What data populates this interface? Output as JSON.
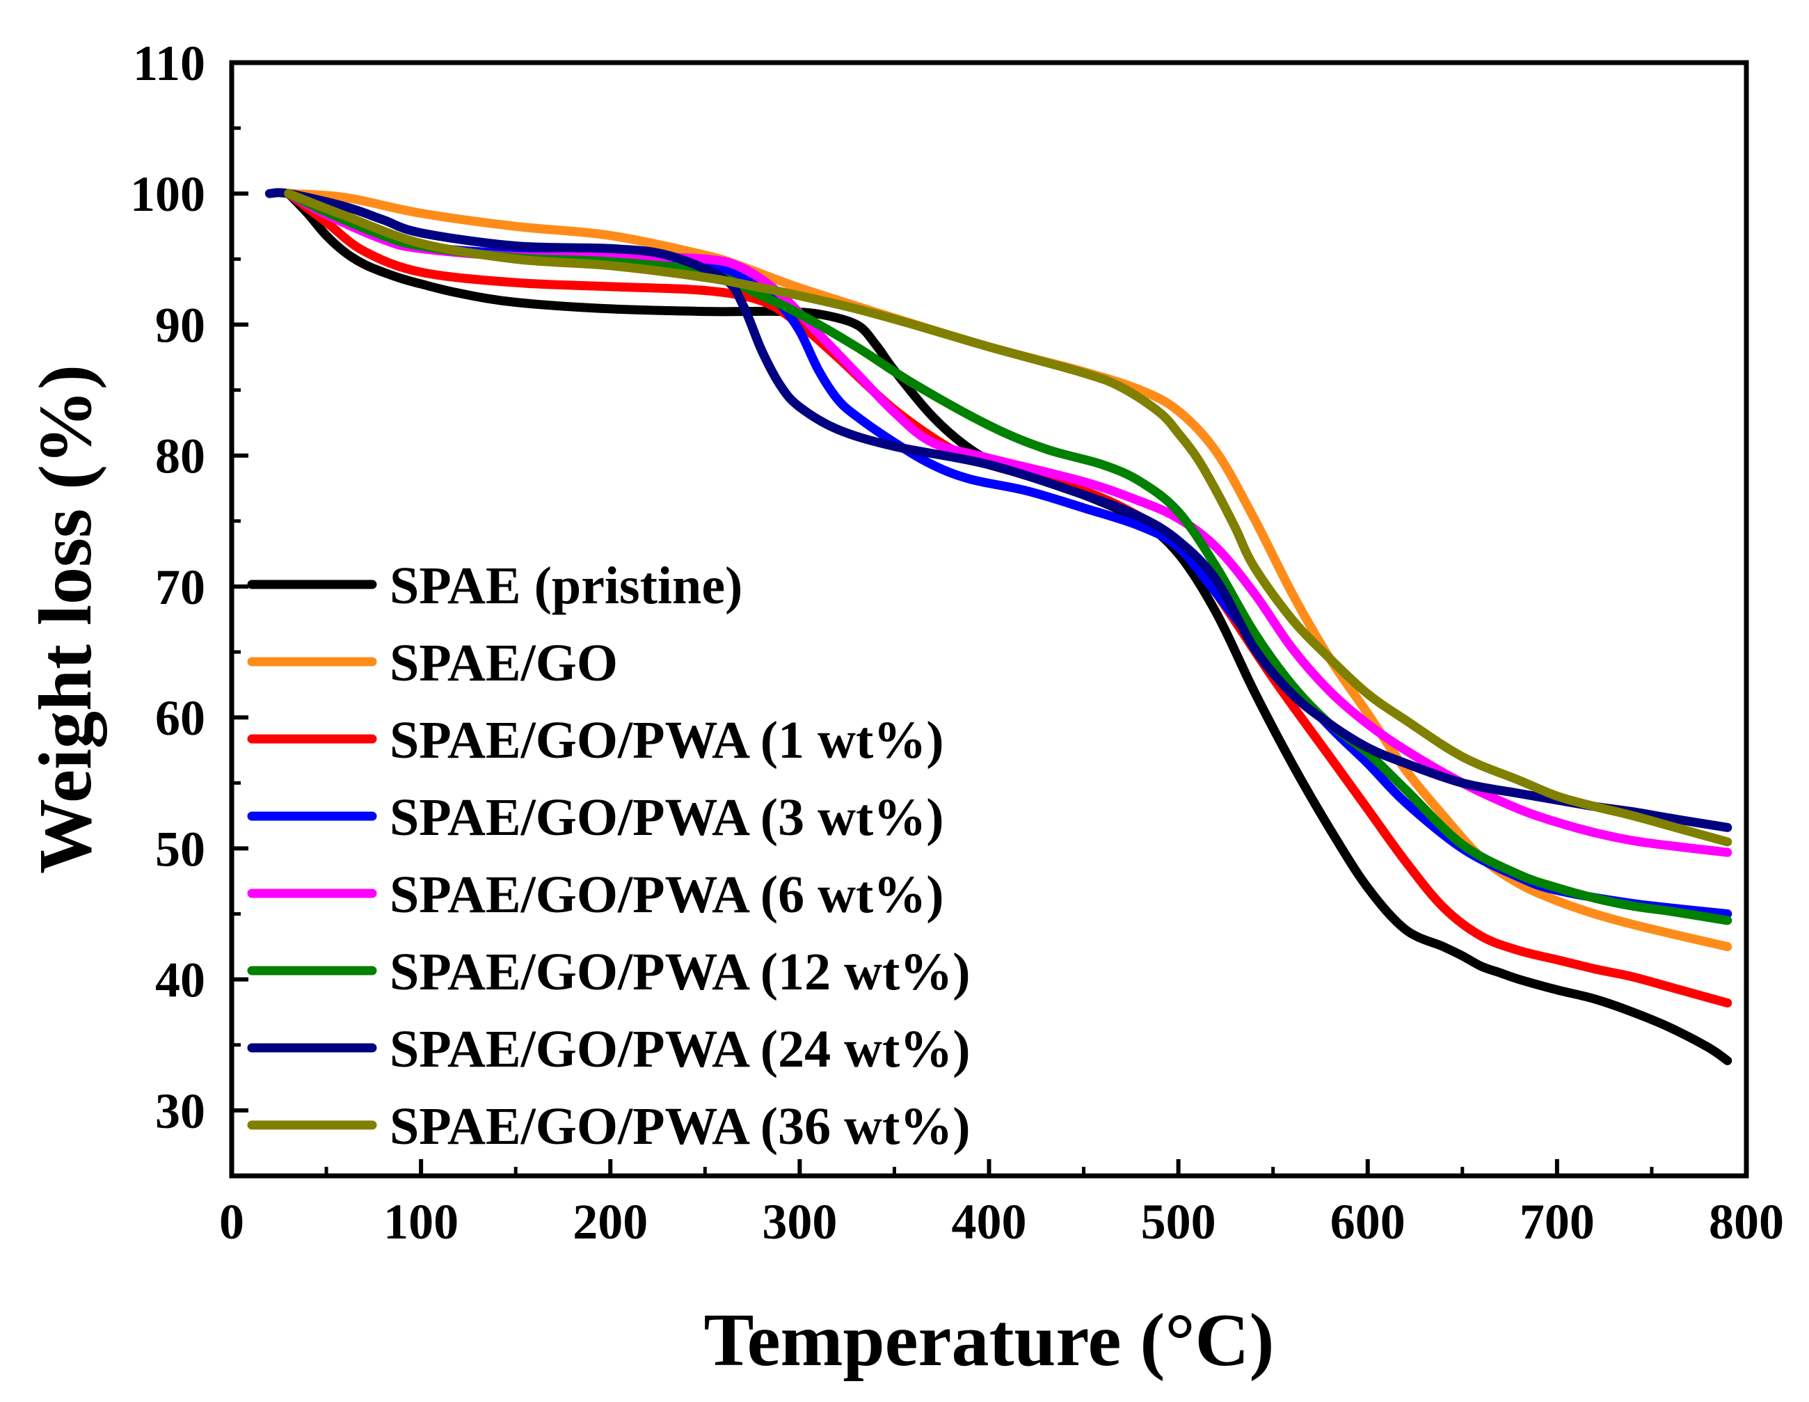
{
  "chart_data": {
    "type": "line",
    "title": "",
    "xlabel": "Temperature (°C)",
    "ylabel": "Weight loss (%)",
    "xlim": [
      0,
      800
    ],
    "ylim": [
      25,
      110
    ],
    "xticks": [
      0,
      100,
      200,
      300,
      400,
      500,
      600,
      700,
      800
    ],
    "yticks": [
      30,
      40,
      50,
      60,
      70,
      80,
      90,
      100,
      110
    ],
    "grid": false,
    "legend_position": "lower-left",
    "series": [
      {
        "name": "SPAE (pristine)",
        "color": "#000000",
        "x": [
          30,
          40,
          50,
          60,
          70,
          80,
          90,
          100,
          120,
          150,
          200,
          250,
          270,
          290,
          310,
          330,
          340,
          350,
          370,
          390,
          410,
          450,
          480,
          500,
          520,
          540,
          560,
          580,
          600,
          620,
          640,
          650,
          660,
          670,
          680,
          700,
          720,
          740,
          760,
          780,
          790
        ],
        "y": [
          100,
          98.5,
          96.8,
          95.5,
          94.6,
          94,
          93.5,
          93.1,
          92.4,
          91.7,
          91.2,
          91,
          91,
          91,
          90.8,
          90,
          88.5,
          86.5,
          83,
          80.5,
          79,
          77,
          75,
          72.5,
          68,
          62,
          56.5,
          51.5,
          47,
          43.8,
          42.5,
          41.8,
          41,
          40.5,
          40,
          39.2,
          38.5,
          37.5,
          36.3,
          34.8,
          33.8
        ]
      },
      {
        "name": "SPAE/GO",
        "color": "#ff8c1a",
        "x": [
          30,
          60,
          100,
          150,
          200,
          250,
          270,
          300,
          350,
          400,
          450,
          480,
          500,
          520,
          540,
          560,
          580,
          600,
          620,
          640,
          660,
          680,
          700,
          720,
          740,
          760,
          790
        ],
        "y": [
          100,
          99.7,
          98.5,
          97.5,
          96.8,
          95.3,
          94.4,
          92.8,
          90.5,
          88.3,
          86.4,
          85,
          83.4,
          80.3,
          75.2,
          69.5,
          64.5,
          60.3,
          56,
          52.5,
          49.3,
          47.3,
          46,
          45,
          44.2,
          43.5,
          42.5
        ]
      },
      {
        "name": "SPAE/GO/PWA (1 wt%)",
        "color": "#ff0000",
        "x": [
          30,
          50,
          70,
          100,
          150,
          200,
          250,
          280,
          300,
          320,
          350,
          380,
          400,
          450,
          480,
          500,
          520,
          550,
          580,
          600,
          620,
          640,
          660,
          680,
          700,
          720,
          740,
          760,
          790
        ],
        "y": [
          100,
          97.8,
          95.6,
          94,
          93.2,
          92.9,
          92.6,
          91.8,
          90,
          87.5,
          83.5,
          80.5,
          79.3,
          77.3,
          75.3,
          73.3,
          69.5,
          63,
          57,
          53,
          49,
          45.5,
          43.3,
          42.2,
          41.5,
          40.8,
          40.2,
          39.4,
          38.2
        ]
      },
      {
        "name": "SPAE/GO/PWA (3 wt%)",
        "color": "#0000ff",
        "x": [
          30,
          50,
          70,
          100,
          150,
          200,
          240,
          260,
          280,
          290,
          300,
          310,
          320,
          330,
          350,
          370,
          390,
          420,
          450,
          480,
          500,
          520,
          550,
          580,
          600,
          620,
          650,
          680,
          700,
          740,
          790
        ],
        "y": [
          100,
          98.7,
          97.3,
          96,
          95.4,
          95.2,
          95,
          94.2,
          92.7,
          91.5,
          89.5,
          86.5,
          84.3,
          83,
          81,
          79.3,
          78.2,
          77.3,
          76,
          74.6,
          73,
          69.5,
          64,
          59.3,
          56.5,
          53.5,
          50,
          47.8,
          46.8,
          45.8,
          45
        ]
      },
      {
        "name": "SPAE/GO/PWA (6 wt%)",
        "color": "#ff00ff",
        "x": [
          30,
          50,
          80,
          100,
          150,
          200,
          250,
          270,
          290,
          310,
          330,
          350,
          370,
          400,
          450,
          480,
          500,
          520,
          540,
          560,
          580,
          600,
          620,
          650,
          680,
          700,
          720,
          740,
          760,
          790
        ],
        "y": [
          100,
          98.4,
          96.5,
          95.8,
          95.2,
          95.2,
          95,
          94.3,
          92.3,
          89.3,
          86.3,
          83.3,
          81,
          79.8,
          78,
          76.5,
          75.2,
          73,
          69.5,
          65.3,
          62,
          59.5,
          57.5,
          55,
          53,
          52,
          51.2,
          50.6,
          50.2,
          49.7
        ]
      },
      {
        "name": "SPAE/GO/PWA (12 wt%)",
        "color": "#008000",
        "x": [
          30,
          50,
          80,
          100,
          150,
          200,
          250,
          280,
          300,
          330,
          360,
          400,
          430,
          460,
          480,
          500,
          520,
          540,
          560,
          580,
          600,
          620,
          650,
          680,
          700,
          720,
          740,
          760,
          790
        ],
        "y": [
          100,
          98.6,
          96.8,
          96,
          95.1,
          94.8,
          94,
          92.2,
          90.8,
          88.3,
          85.5,
          82.3,
          80.5,
          79.3,
          78,
          75.7,
          71.5,
          66.5,
          62.5,
          59.5,
          57.3,
          54.5,
          50.3,
          48,
          47,
          46.2,
          45.6,
          45.2,
          44.5
        ]
      },
      {
        "name": "SPAE/GO/PWA (24 wt%)",
        "color": "#000080",
        "x": [
          20,
          30,
          60,
          80,
          100,
          150,
          200,
          230,
          260,
          270,
          280,
          290,
          300,
          320,
          350,
          400,
          450,
          480,
          500,
          520,
          540,
          560,
          580,
          600,
          620,
          650,
          680,
          700,
          720,
          740,
          760,
          790
        ],
        "y": [
          100,
          100,
          99,
          98,
          97,
          96,
          95.8,
          95.3,
          93.5,
          91.5,
          88,
          85.3,
          83.7,
          82,
          80.7,
          79.3,
          77,
          75.3,
          73.5,
          70.5,
          65.3,
          61.8,
          59.5,
          57.7,
          56.5,
          55,
          54.2,
          53.7,
          53.2,
          52.8,
          52.3,
          51.6
        ]
      },
      {
        "name": "SPAE/GO/PWA (36 wt%)",
        "color": "#808000",
        "x": [
          30,
          60,
          100,
          150,
          200,
          250,
          280,
          300,
          330,
          360,
          400,
          450,
          470,
          490,
          500,
          510,
          520,
          530,
          540,
          560,
          580,
          600,
          620,
          650,
          680,
          700,
          720,
          740,
          760,
          790
        ],
        "y": [
          100,
          98.3,
          96.2,
          95,
          94.5,
          93.6,
          92.8,
          92.2,
          91.2,
          90,
          88.3,
          86.3,
          85.2,
          83.3,
          81.7,
          79.8,
          77.3,
          74.5,
          71.5,
          67.5,
          64.5,
          61.8,
          59.8,
          57,
          55.2,
          54,
          53.2,
          52.5,
          51.7,
          50.5
        ]
      }
    ]
  }
}
